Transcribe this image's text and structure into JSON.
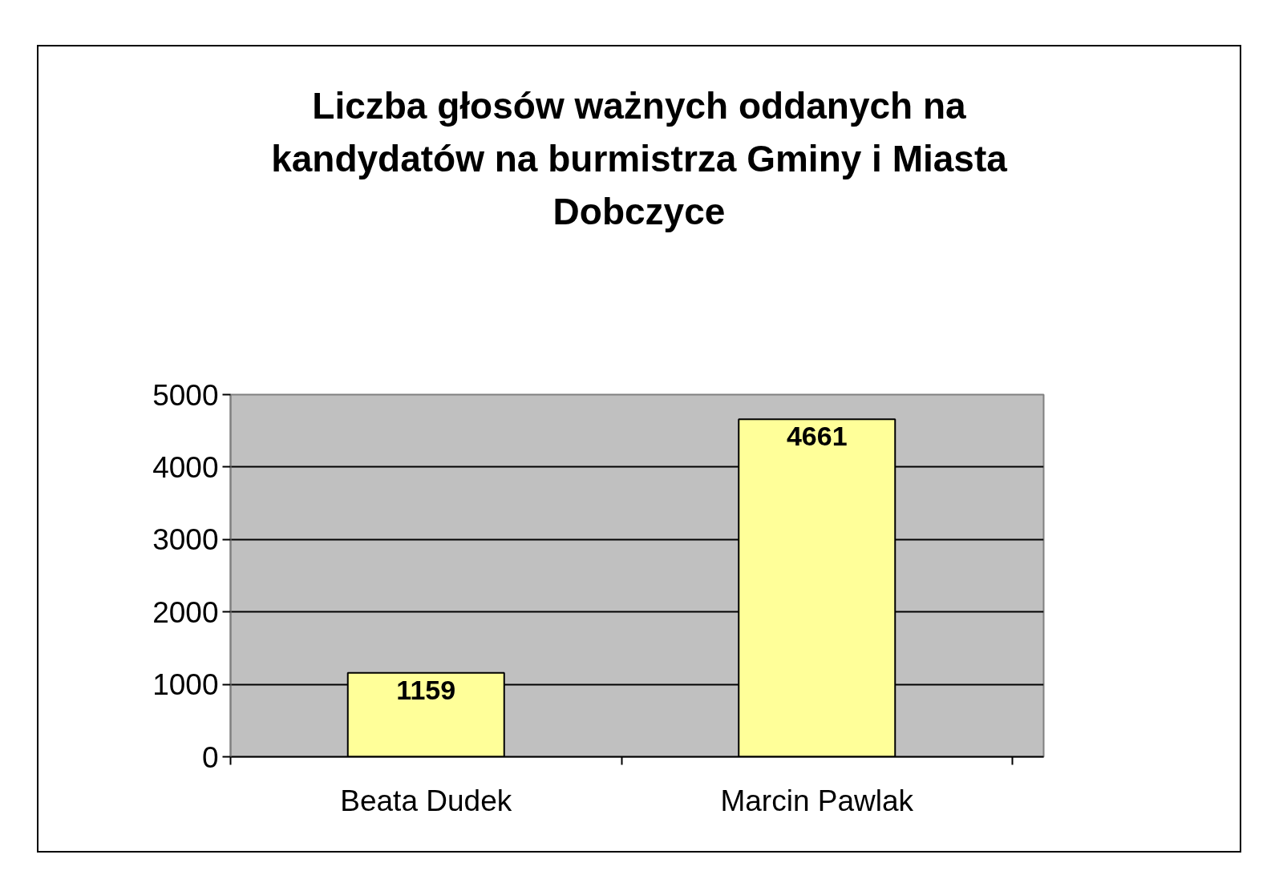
{
  "chart_data": {
    "type": "bar",
    "title": "Liczba głosów ważnych oddanych na kandydatów na burmistrza Gminy i Miasta Dobczyce",
    "categories": [
      "Beata Dudek",
      "Marcin Pawlak"
    ],
    "values": [
      1159,
      4661
    ],
    "color": "#ffff99",
    "ylim": [
      0,
      5000
    ],
    "yticks": [
      0,
      1000,
      2000,
      3000,
      4000,
      5000
    ],
    "grid": "y",
    "data_labels": true
  }
}
